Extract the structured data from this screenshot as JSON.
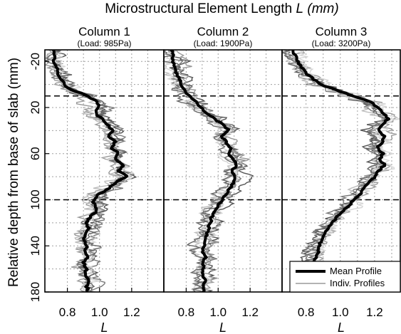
{
  "chart_data": {
    "type": "line",
    "title": "Microstructural Element Length",
    "title_symbol": "L",
    "title_unit": "(mm)",
    "ylabel": "Relative depth from base of slab (mm)",
    "ylim": [
      -30,
      180
    ],
    "y_inverted": true,
    "yticks": [
      -20,
      20,
      60,
      100,
      140,
      180
    ],
    "ygrid": [
      -20,
      0,
      20,
      40,
      60,
      80,
      100,
      120,
      140,
      160,
      180
    ],
    "reference_lines": [
      10,
      100
    ],
    "grid": true,
    "legend": {
      "placement": "bottom-right",
      "panel": 3,
      "entries": [
        "Mean Profile",
        "Indiv. Profiles"
      ]
    },
    "colors": {
      "mean": "#000000",
      "individual": [
        "#555555",
        "#7a7a7a",
        "#9a9a9a",
        "#bdbdbd",
        "#d6d6d6",
        "#686868"
      ],
      "reference": "#000000",
      "grid": "#a0a0a0"
    },
    "panels": [
      {
        "column_title": "Column 1",
        "load_label": "(Load: 985Pa)",
        "xlabel": "L",
        "xlim": [
          0.66,
          1.4
        ],
        "xticks": [
          "0.8",
          "1.0",
          "1.2"
        ],
        "xgrid": [
          0.8,
          0.9,
          1.0,
          1.1,
          1.2,
          1.3
        ],
        "mean_profile": {
          "depth": [
            -30,
            -20,
            -10,
            0,
            5,
            10,
            15,
            20,
            25,
            30,
            35,
            40,
            45,
            50,
            55,
            60,
            65,
            70,
            75,
            80,
            85,
            90,
            95,
            100,
            105,
            110,
            115,
            120,
            125,
            130,
            135,
            140,
            145,
            150,
            155,
            160,
            165,
            170,
            175,
            180
          ],
          "L": [
            0.71,
            0.72,
            0.74,
            0.78,
            0.83,
            0.93,
            0.98,
            1.0,
            0.97,
            1.02,
            1.05,
            1.08,
            1.06,
            1.1,
            1.07,
            1.12,
            1.09,
            1.15,
            1.12,
            1.17,
            1.1,
            1.06,
            1.0,
            0.96,
            0.97,
            0.98,
            0.94,
            0.92,
            0.93,
            0.91,
            0.9,
            0.92,
            0.91,
            0.93,
            0.9,
            0.92,
            0.91,
            0.93,
            0.92,
            0.93
          ]
        }
      },
      {
        "column_title": "Column 2",
        "load_label": "(Load: 1900Pa)",
        "xlabel": "L",
        "xlim": [
          0.66,
          1.4
        ],
        "xticks": [
          "0.8",
          "1.0",
          "1.2"
        ],
        "xgrid": [
          0.8,
          0.9,
          1.0,
          1.1,
          1.2,
          1.3
        ],
        "mean_profile": {
          "depth": [
            -30,
            -20,
            -10,
            0,
            5,
            10,
            15,
            20,
            25,
            30,
            35,
            40,
            45,
            50,
            55,
            60,
            65,
            70,
            75,
            80,
            85,
            90,
            95,
            100,
            105,
            110,
            115,
            120,
            125,
            130,
            135,
            140,
            145,
            150,
            155,
            160,
            165,
            170,
            175,
            180
          ],
          "L": [
            0.71,
            0.72,
            0.74,
            0.77,
            0.79,
            0.82,
            0.86,
            0.89,
            0.93,
            0.98,
            1.03,
            1.07,
            1.02,
            1.05,
            1.08,
            1.06,
            1.1,
            1.12,
            1.08,
            1.11,
            1.1,
            1.07,
            1.05,
            1.03,
            1.0,
            0.98,
            0.96,
            0.95,
            0.94,
            0.93,
            0.92,
            0.91,
            0.9,
            0.92,
            0.9,
            0.91,
            0.9,
            0.92,
            0.9,
            0.91
          ]
        }
      },
      {
        "column_title": "Column 3",
        "load_label": "(Load: 3200Pa)",
        "xlabel": "L",
        "xlim": [
          0.66,
          1.35
        ],
        "xticks": [
          "0.8",
          "1.0",
          "1.2"
        ],
        "xgrid": [
          0.8,
          0.9,
          1.0,
          1.1,
          1.2,
          1.3
        ],
        "mean_profile": {
          "depth": [
            -30,
            -20,
            -10,
            0,
            5,
            10,
            15,
            20,
            25,
            30,
            35,
            40,
            45,
            50,
            55,
            60,
            65,
            70,
            75,
            80,
            85,
            90,
            95,
            100,
            105,
            110,
            115,
            120,
            125,
            130,
            135,
            140,
            145,
            150,
            155,
            160
          ],
          "L": [
            0.72,
            0.75,
            0.8,
            0.88,
            0.98,
            1.08,
            1.18,
            1.22,
            1.25,
            1.28,
            1.24,
            1.22,
            1.26,
            1.24,
            1.22,
            1.25,
            1.23,
            1.26,
            1.22,
            1.2,
            1.17,
            1.14,
            1.12,
            1.08,
            1.05,
            1.01,
            0.98,
            0.95,
            0.93,
            0.91,
            0.89,
            0.88,
            0.87,
            0.86,
            0.85,
            0.84
          ]
        }
      }
    ]
  }
}
